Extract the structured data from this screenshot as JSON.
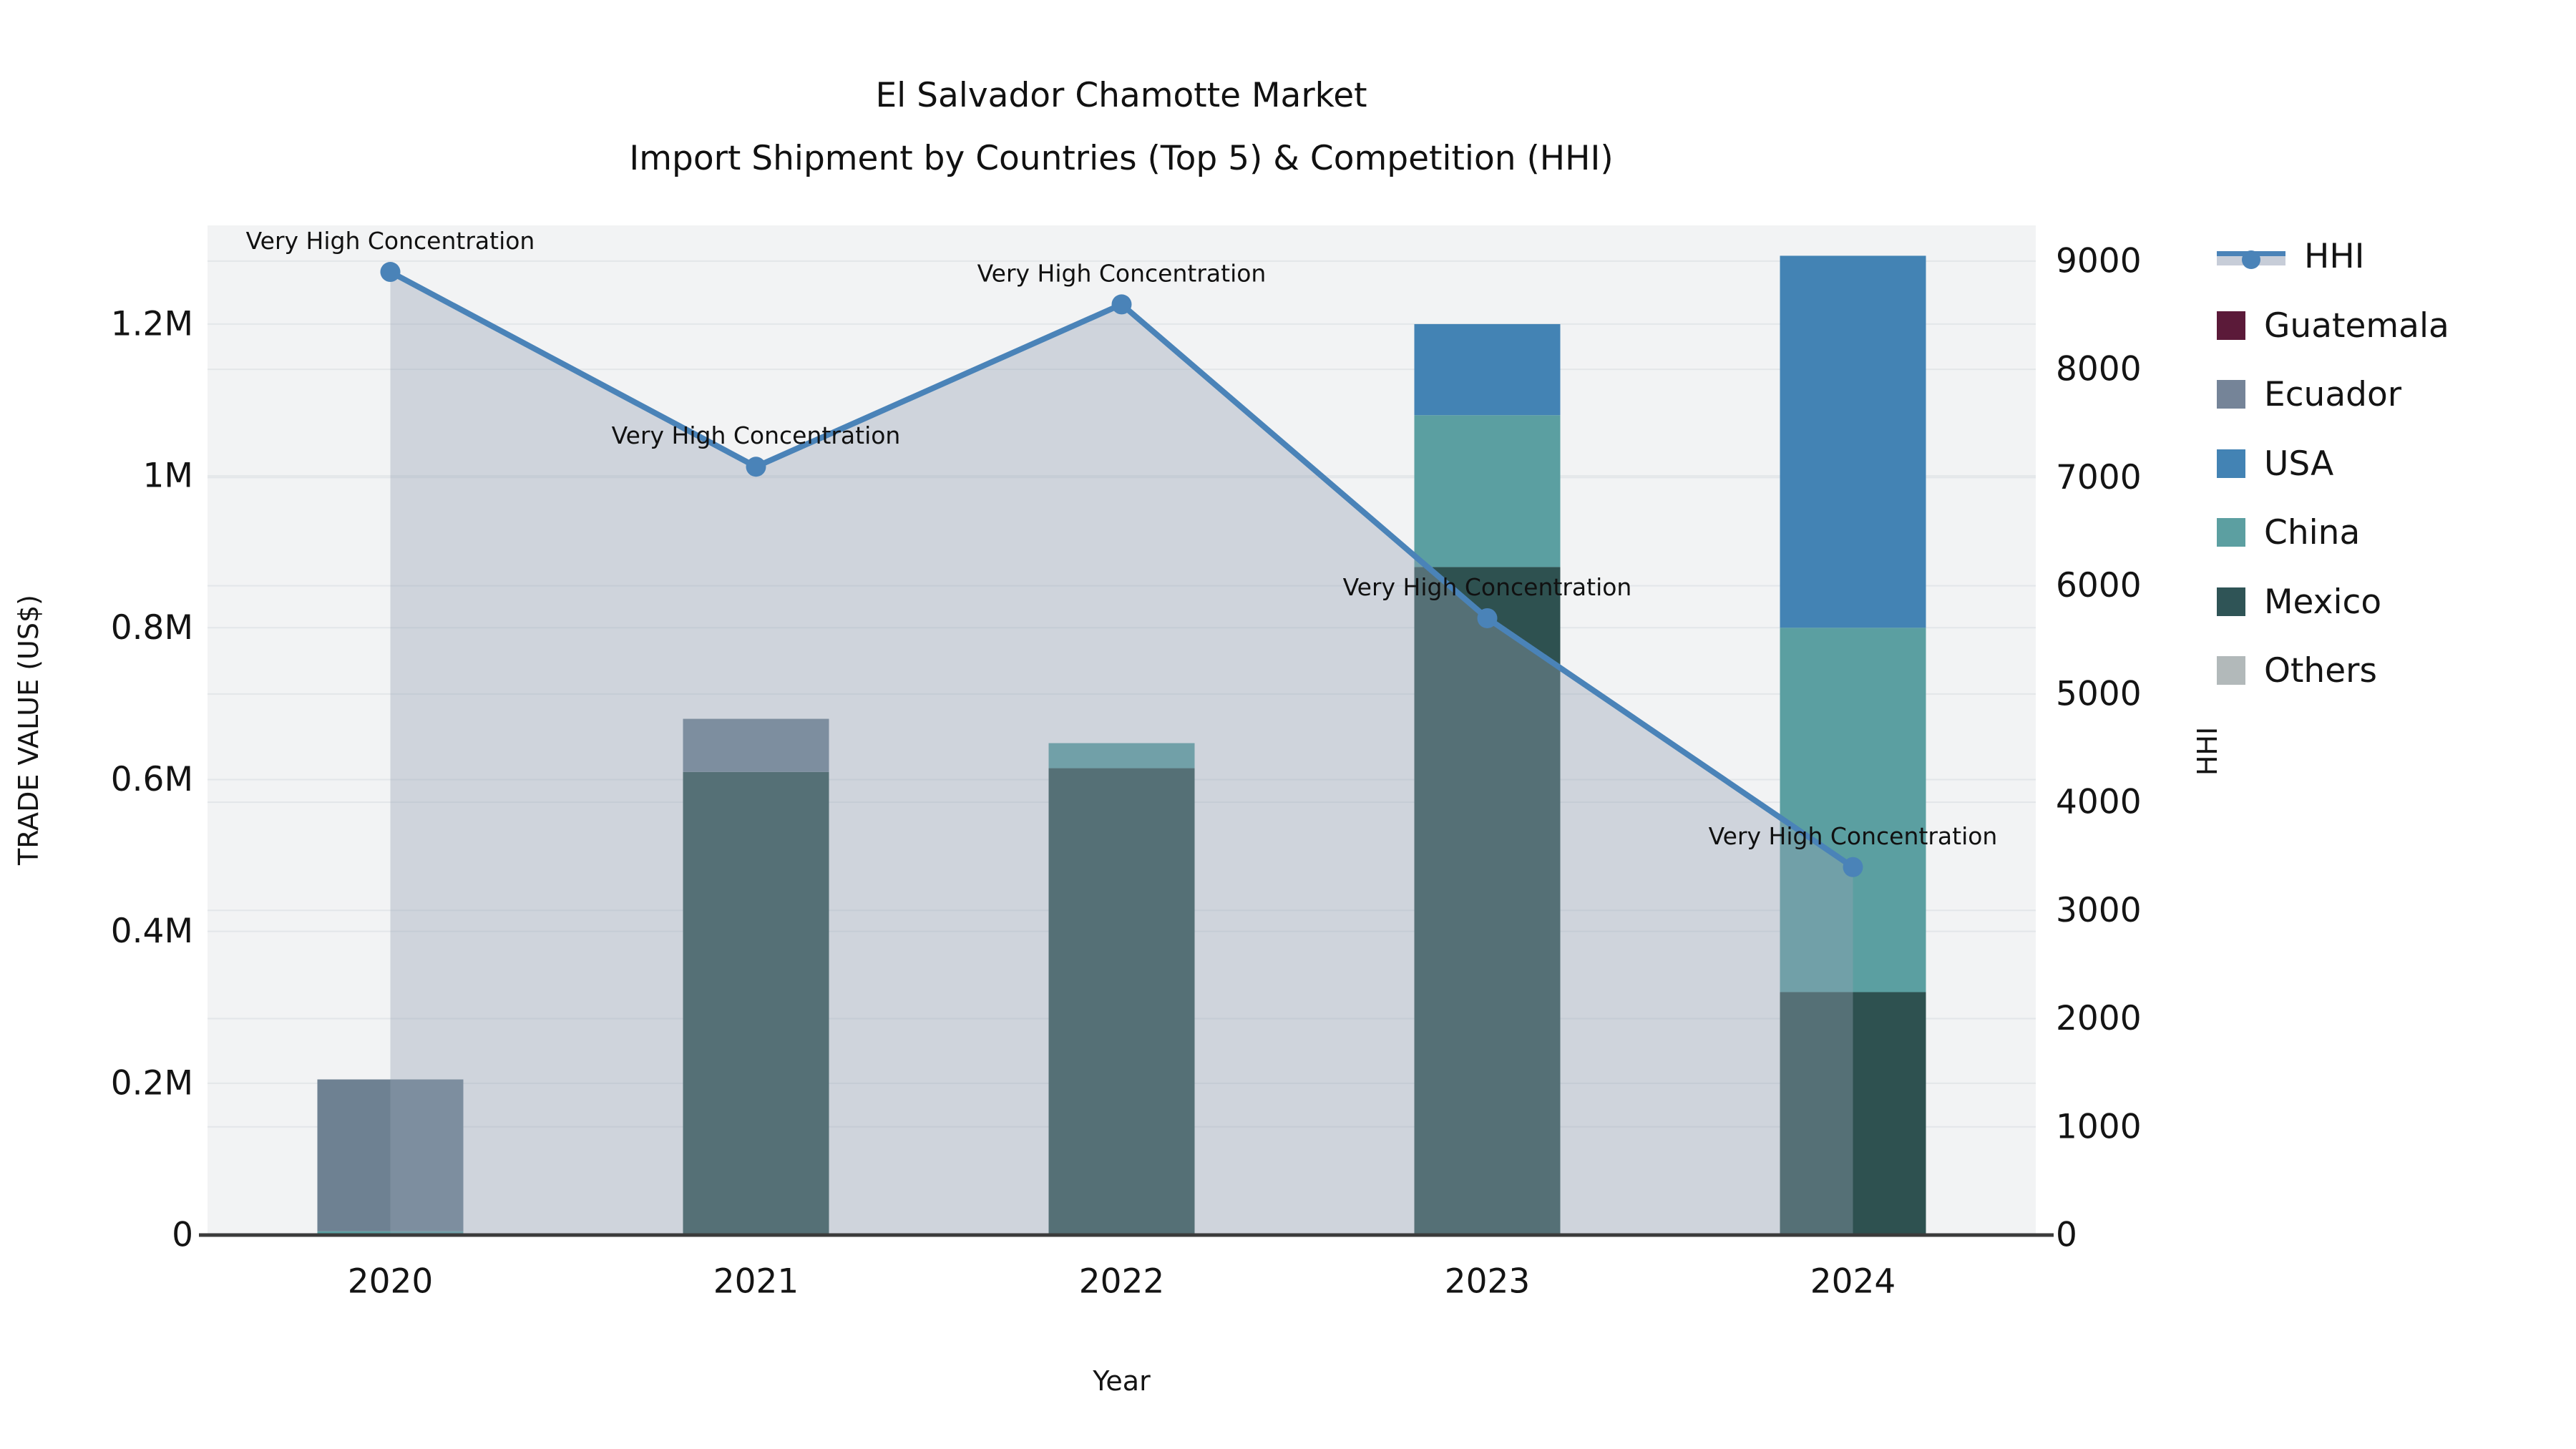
{
  "page": {
    "background_color": "#ffffff",
    "plot_background_color": "#f2f3f4",
    "gridline_color": "#e3e6e9",
    "axis_line_color": "#3b3b3b",
    "text_color": "#141414"
  },
  "chart_data": {
    "type": "bar",
    "subtype": "stacked-bars-with-dual-axis-line-and-area",
    "title_line1": "El Salvador Chamotte Market",
    "title_line2": "Import Shipment by Countries (Top 5) & Competition (HHI)",
    "xlabel": "Year",
    "ylabel_left": "TRADE VALUE (US$)",
    "ylabel_right": "HHI",
    "categories": [
      "2020",
      "2021",
      "2022",
      "2023",
      "2024"
    ],
    "bar_unit": "million US$ (trade value, left axis)",
    "bar_series_stack_order_bottom_to_top": [
      {
        "name": "Mexico",
        "color": "#2e5150",
        "values": [
          0,
          0.61,
          0.615,
          0.88,
          0.32
        ]
      },
      {
        "name": "China",
        "color": "#5b9fa1",
        "values": [
          0.005,
          0,
          0.033,
          0.2,
          0.48
        ]
      },
      {
        "name": "USA",
        "color": "#4383b4",
        "values": [
          0,
          0,
          0,
          0.12,
          0.49
        ]
      },
      {
        "name": "Ecuador",
        "color": "#6e8192",
        "values": [
          0.2,
          0.07,
          0,
          0,
          0
        ]
      },
      {
        "name": "Guatemala",
        "color": "#5b1a39",
        "values": [
          0,
          0,
          0,
          0,
          0
        ]
      },
      {
        "name": "Others",
        "color": "#b2b9ba",
        "values": [
          0,
          0,
          0,
          0,
          0
        ]
      }
    ],
    "bar_totals": [
      0.205,
      0.68,
      0.648,
      1.2,
      1.29
    ],
    "hhi_line": {
      "label": "HHI",
      "line_color": "#4a83b8",
      "marker_color": "#4a83b8",
      "area_fill_color": "#97a2b5",
      "area_fill_opacity": 0.38,
      "values": [
        8900,
        7100,
        8600,
        5700,
        3400
      ]
    },
    "annotations": [
      "Very High Concentration",
      "Very High Concentration",
      "Very High Concentration",
      "Very High Concentration",
      "Very High Concentration"
    ],
    "left_axis": {
      "tick_labels": [
        "0",
        "0.2M",
        "0.4M",
        "0.6M",
        "0.8M",
        "1M",
        "1.2M"
      ],
      "tick_values": [
        0,
        0.2,
        0.4,
        0.6,
        0.8,
        1.0,
        1.2
      ],
      "range_max": 1.33
    },
    "right_axis": {
      "tick_labels": [
        "0",
        "1000",
        "2000",
        "3000",
        "4000",
        "5000",
        "6000",
        "7000",
        "8000",
        "9000"
      ],
      "tick_values": [
        0,
        1000,
        2000,
        3000,
        4000,
        5000,
        6000,
        7000,
        8000,
        9000
      ],
      "range_max": 9330
    },
    "grid": true,
    "legend": {
      "position": "upper-right, outside plot",
      "items": [
        {
          "label": "HHI",
          "type": "line",
          "color": "#4a83b8"
        },
        {
          "label": "Guatemala",
          "type": "patch",
          "color": "#5b1a39"
        },
        {
          "label": "Ecuador",
          "type": "patch",
          "color": "#758498"
        },
        {
          "label": "USA",
          "type": "patch",
          "color": "#4383b4"
        },
        {
          "label": "China",
          "type": "patch",
          "color": "#5c9fa1"
        },
        {
          "label": "Mexico",
          "type": "patch",
          "color": "#2f5456"
        },
        {
          "label": "Others",
          "type": "patch",
          "color": "#b2b9ba"
        }
      ]
    }
  }
}
